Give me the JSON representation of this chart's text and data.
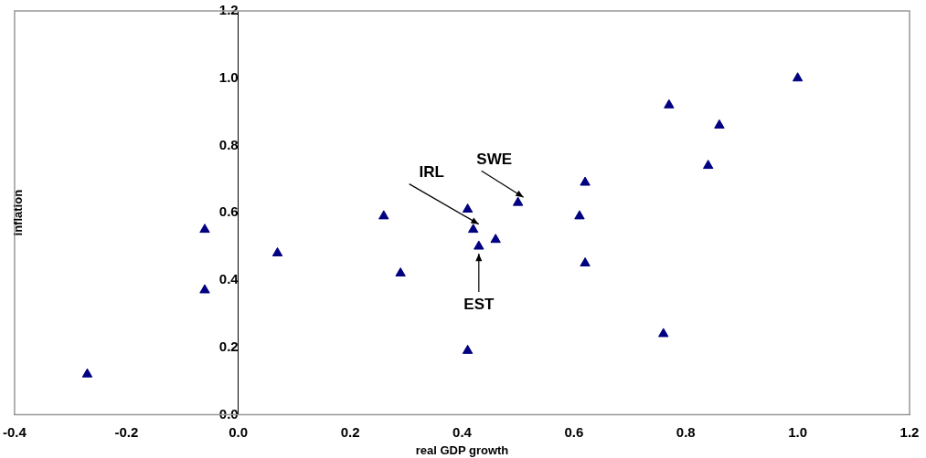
{
  "chart_data": {
    "type": "scatter",
    "xlabel": "real GDP growth",
    "ylabel": "inflation",
    "series": [
      {
        "color": "#000080",
        "x": [
          -0.27,
          -0.06,
          -0.06,
          0.07,
          0.26,
          0.29,
          0.41,
          0.41,
          0.42,
          0.43,
          0.46,
          0.5,
          0.61,
          0.62,
          0.62,
          0.77,
          0.86,
          0.84,
          1.0,
          0.76
        ],
        "values": [
          0.12,
          0.55,
          0.37,
          0.48,
          0.59,
          0.42,
          0.61,
          0.19,
          0.55,
          0.5,
          0.52,
          0.63,
          0.59,
          0.69,
          0.45,
          0.92,
          0.86,
          0.74,
          1.0,
          0.24
        ]
      }
    ],
    "marker": "triangle",
    "legend": false,
    "grid": false,
    "xlim": [
      -0.4,
      1.2
    ],
    "ylim": [
      0,
      1.2
    ],
    "xticks": [
      -0.4,
      -0.2,
      {
        "value": 0,
        "label": "0.0"
      },
      0.2,
      0.4,
      0.6,
      0.8,
      {
        "value": 1,
        "label": "1.0"
      },
      1.2
    ],
    "yticks": [
      {
        "value": 0,
        "label": "0.0"
      },
      0.2,
      0.4,
      0.6,
      0.8,
      {
        "value": 1,
        "label": "1.0"
      },
      1.2
    ],
    "annotations": [
      {
        "text": "IRL",
        "x": 0.42,
        "y": 0.55
      },
      {
        "text": "SWE",
        "x": 0.5,
        "y": 0.63
      },
      {
        "text": "EST",
        "x": 0.43,
        "y": 0.5
      }
    ]
  }
}
